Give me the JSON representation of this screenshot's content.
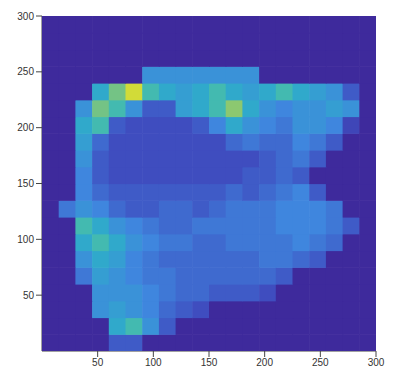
{
  "chart_data": {
    "type": "heatmap",
    "x": [
      7.5,
      22.5,
      37.5,
      52.5,
      67.5,
      82.5,
      97.5,
      112.5,
      127.5,
      142.5,
      157.5,
      172.5,
      187.5,
      202.5,
      217.5,
      232.5,
      247.5,
      262.5,
      277.5,
      292.5
    ],
    "y": [
      7.5,
      22.5,
      37.5,
      52.5,
      67.5,
      82.5,
      97.5,
      112.5,
      127.5,
      142.5,
      157.5,
      172.5,
      187.5,
      202.5,
      217.5,
      232.5,
      247.5,
      262.5,
      277.5,
      292.5
    ],
    "z": [
      [
        0,
        0,
        0,
        0,
        0.3,
        0.3,
        0,
        0,
        0,
        0,
        0,
        0,
        0,
        0,
        0,
        0,
        0,
        0,
        0,
        0
      ],
      [
        0,
        0,
        0,
        0,
        0.6,
        0.7,
        0.5,
        0.3,
        0,
        0,
        0,
        0,
        0,
        0,
        0,
        0,
        0,
        0,
        0,
        0
      ],
      [
        0,
        0,
        0,
        0.5,
        0.55,
        0.5,
        0.45,
        0.35,
        0.3,
        0.25,
        0,
        0,
        0,
        0,
        0,
        0,
        0,
        0,
        0,
        0
      ],
      [
        0,
        0,
        0,
        0.5,
        0.5,
        0.5,
        0.45,
        0.4,
        0.35,
        0.35,
        0.3,
        0.3,
        0.3,
        0.25,
        0,
        0,
        0,
        0,
        0,
        0
      ],
      [
        0,
        0,
        0.4,
        0.55,
        0.5,
        0.45,
        0.4,
        0.4,
        0.35,
        0.35,
        0.35,
        0.35,
        0.35,
        0.35,
        0.3,
        0,
        0,
        0,
        0,
        0
      ],
      [
        0,
        0,
        0.5,
        0.6,
        0.55,
        0.45,
        0.4,
        0.35,
        0.35,
        0.35,
        0.35,
        0.35,
        0.35,
        0.4,
        0.4,
        0.35,
        0.3,
        0,
        0,
        0
      ],
      [
        0,
        0,
        0.6,
        0.7,
        0.6,
        0.5,
        0.45,
        0.4,
        0.4,
        0.35,
        0.35,
        0.4,
        0.4,
        0.4,
        0.4,
        0.45,
        0.4,
        0.35,
        0,
        0
      ],
      [
        0,
        0,
        0.7,
        0.6,
        0.5,
        0.45,
        0.4,
        0.35,
        0.35,
        0.4,
        0.4,
        0.4,
        0.4,
        0.4,
        0.45,
        0.45,
        0.45,
        0.4,
        0.3,
        0
      ],
      [
        0,
        0.4,
        0.5,
        0.45,
        0.35,
        0.3,
        0.3,
        0.35,
        0.35,
        0.3,
        0.35,
        0.4,
        0.4,
        0.4,
        0.45,
        0.45,
        0.45,
        0.4,
        0,
        0
      ],
      [
        0,
        0,
        0.45,
        0.35,
        0.3,
        0.3,
        0.3,
        0.3,
        0.3,
        0.3,
        0.3,
        0.35,
        0.3,
        0.35,
        0.4,
        0.45,
        0.3,
        0,
        0,
        0
      ],
      [
        0,
        0,
        0.45,
        0.3,
        0.25,
        0.25,
        0.25,
        0.25,
        0.25,
        0.25,
        0.25,
        0.25,
        0.3,
        0.3,
        0.35,
        0.3,
        0,
        0,
        0,
        0
      ],
      [
        0,
        0,
        0.5,
        0.3,
        0.25,
        0.25,
        0.25,
        0.25,
        0.25,
        0.25,
        0.25,
        0.25,
        0.25,
        0.3,
        0.35,
        0.4,
        0.3,
        0,
        0,
        0
      ],
      [
        0,
        0,
        0.55,
        0.35,
        0.25,
        0.25,
        0.25,
        0.25,
        0.25,
        0.25,
        0.25,
        0.35,
        0.4,
        0.35,
        0.35,
        0.45,
        0.4,
        0.3,
        0,
        0
      ],
      [
        0,
        0,
        0.6,
        0.7,
        0.3,
        0.25,
        0.25,
        0.25,
        0.25,
        0.3,
        0.45,
        0.6,
        0.5,
        0.45,
        0.4,
        0.5,
        0.5,
        0.45,
        0.2,
        0
      ],
      [
        0,
        0,
        0.5,
        0.8,
        0.7,
        0.5,
        0.3,
        0.3,
        0.55,
        0.6,
        0.7,
        0.85,
        0.6,
        0.5,
        0.45,
        0.5,
        0.5,
        0.55,
        0.5,
        0
      ],
      [
        0,
        0,
        0,
        0.6,
        0.8,
        0.95,
        0.7,
        0.6,
        0.55,
        0.6,
        0.7,
        0.6,
        0.55,
        0.6,
        0.7,
        0.6,
        0.55,
        0.5,
        0.3,
        0
      ],
      [
        0,
        0,
        0,
        0,
        0,
        0,
        0.5,
        0.5,
        0.5,
        0.5,
        0.5,
        0.5,
        0.5,
        0,
        0,
        0,
        0,
        0,
        0,
        0
      ],
      [
        0,
        0,
        0,
        0,
        0,
        0,
        0,
        0,
        0,
        0,
        0,
        0,
        0,
        0,
        0,
        0,
        0,
        0,
        0,
        0
      ],
      [
        0,
        0,
        0,
        0,
        0,
        0,
        0,
        0,
        0,
        0,
        0,
        0,
        0,
        0,
        0,
        0,
        0,
        0,
        0,
        0
      ],
      [
        0,
        0,
        0,
        0,
        0,
        0,
        0,
        0,
        0,
        0,
        0,
        0,
        0,
        0,
        0,
        0,
        0,
        0,
        0,
        0
      ]
    ],
    "zlim": [
      0,
      1
    ],
    "xlim": [
      0,
      300
    ],
    "ylim": [
      0,
      300
    ],
    "xticks": [
      50,
      100,
      150,
      200,
      250,
      300
    ],
    "yticks": [
      50,
      100,
      150,
      200,
      250,
      300
    ]
  }
}
